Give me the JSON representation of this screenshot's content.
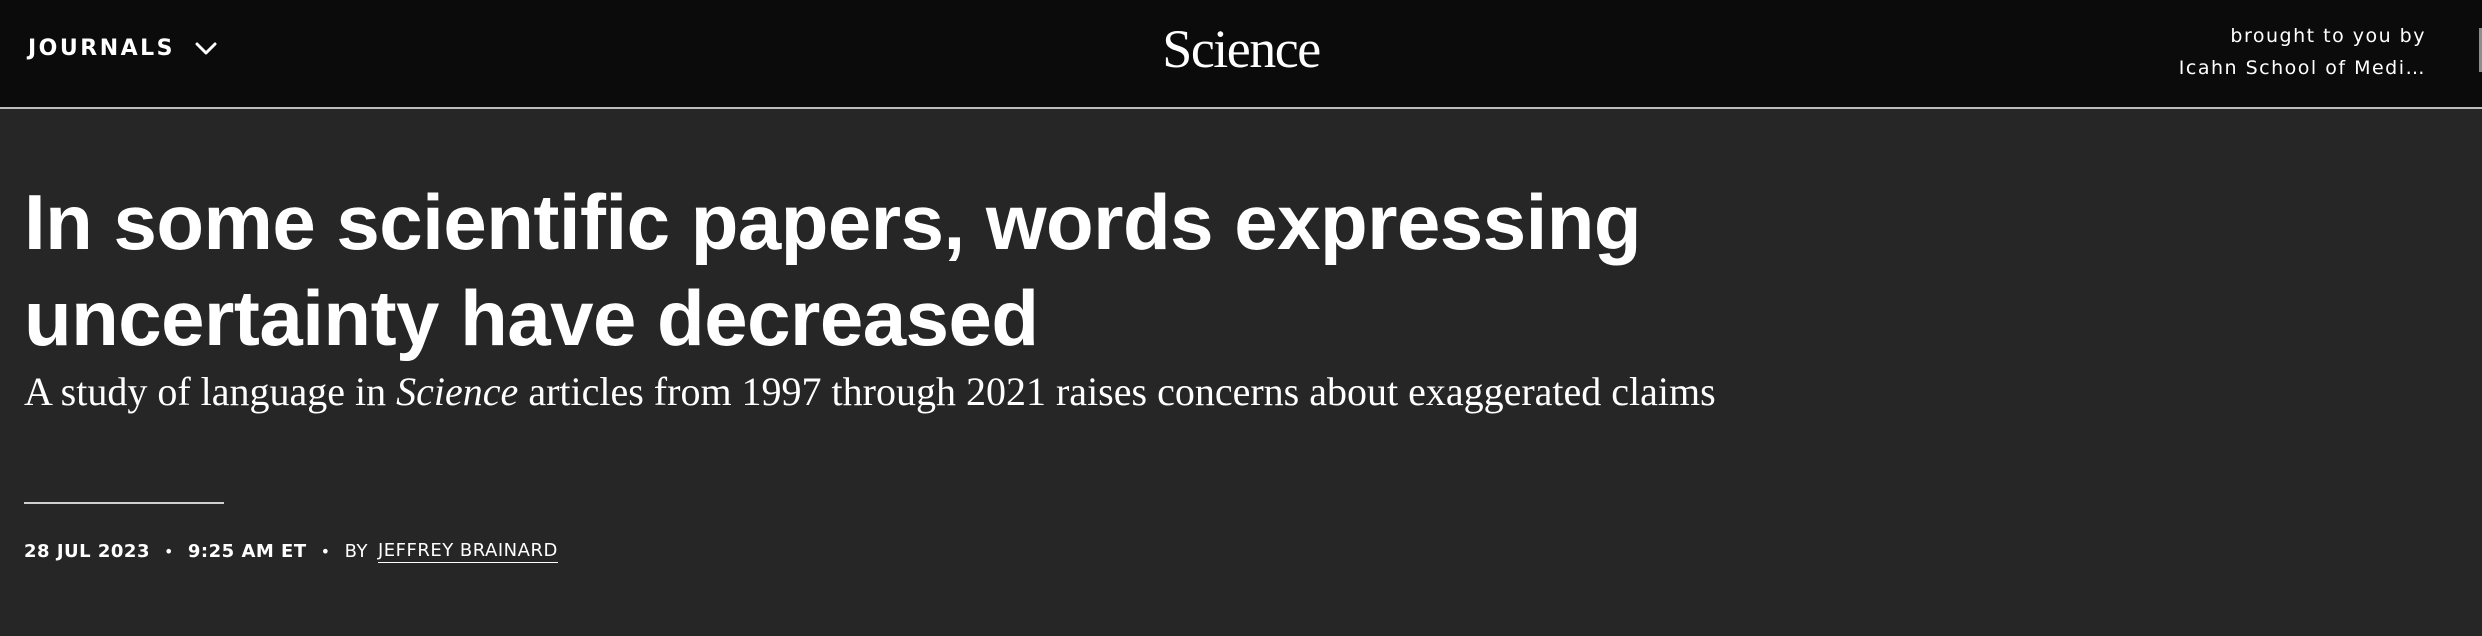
{
  "header": {
    "journals_label": "JOURNALS",
    "logo_text": "Science",
    "sponsor_line1": "brought to you by",
    "sponsor_line2": "Icahn School of Medi…"
  },
  "article": {
    "headline": "In some scientific papers, words expressing uncertainty have decreased",
    "dek_before": "A study of language in ",
    "dek_italic": "Science",
    "dek_after": " articles from 1997 through 2021 raises concerns about exaggerated claims",
    "date": "28 JUL 2023",
    "time": "9:25 AM ET",
    "by_label": "BY",
    "author": "JEFFREY BRAINARD",
    "separator": "•"
  },
  "icons": {
    "journals_dropdown": "chevron-down-icon"
  },
  "colors": {
    "topbar_bg": "#0b0b0b",
    "page_bg": "#262626",
    "text": "#ffffff"
  }
}
